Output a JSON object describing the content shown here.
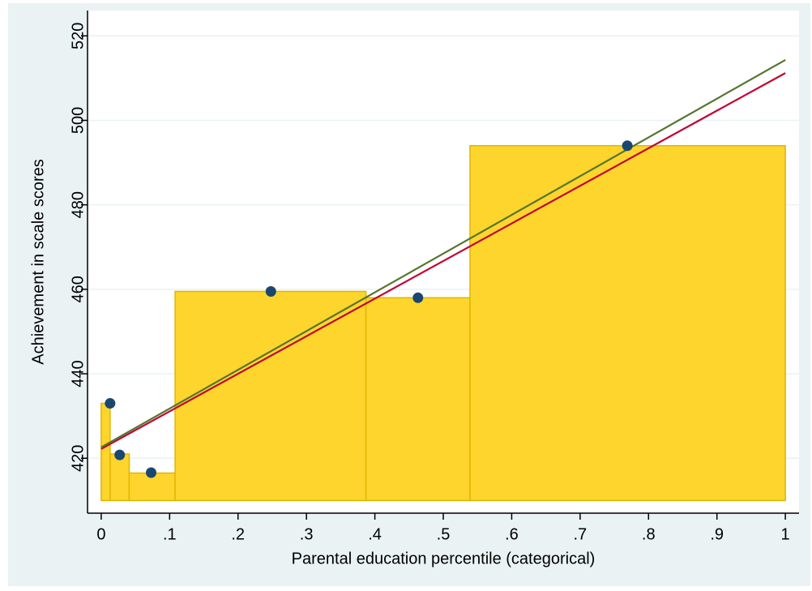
{
  "chart_data": {
    "type": "combo",
    "x_label": "Parental education percentile (categorical)",
    "y_label": "Achievement in scale scores",
    "xlim": [
      -0.02,
      1.02
    ],
    "ylim": [
      407,
      526
    ],
    "xticks": [
      0,
      {
        "value": 0.1,
        "label": ".1"
      },
      {
        "value": 0.2,
        "label": ".2"
      },
      {
        "value": 0.3,
        "label": ".3"
      },
      {
        "value": 0.4,
        "label": ".4"
      },
      {
        "value": 0.5,
        "label": ".5"
      },
      {
        "value": 0.6,
        "label": ".6"
      },
      {
        "value": 0.7,
        "label": ".7"
      },
      {
        "value": 0.8,
        "label": ".8"
      },
      {
        "value": 0.9,
        "label": ".9"
      },
      1
    ],
    "yticks": [
      420,
      440,
      460,
      480,
      500,
      520
    ],
    "grid": true,
    "bars": {
      "type": "bar",
      "bins": [
        0,
        0.013,
        0.041,
        0.108,
        0.387,
        0.539,
        1
      ],
      "values": [
        433,
        421,
        416.5,
        459.5,
        458,
        494
      ],
      "base": 410,
      "color": "#fdd52c",
      "edge_color": "#e2b500"
    },
    "points": {
      "type": "scatter",
      "x": [
        0.013,
        0.027,
        0.073,
        0.248,
        0.463,
        0.769
      ],
      "values": [
        433,
        420.8,
        416.6,
        459.5,
        458,
        494
      ],
      "color": "#1a476f"
    },
    "lines": [
      {
        "type": "line",
        "x": [
          0,
          1
        ],
        "values": [
          422.2,
          511.2
        ],
        "color": "#c10534"
      },
      {
        "type": "line",
        "x": [
          0,
          1
        ],
        "values": [
          422.6,
          514.3
        ],
        "color": "#55752f"
      }
    ]
  }
}
